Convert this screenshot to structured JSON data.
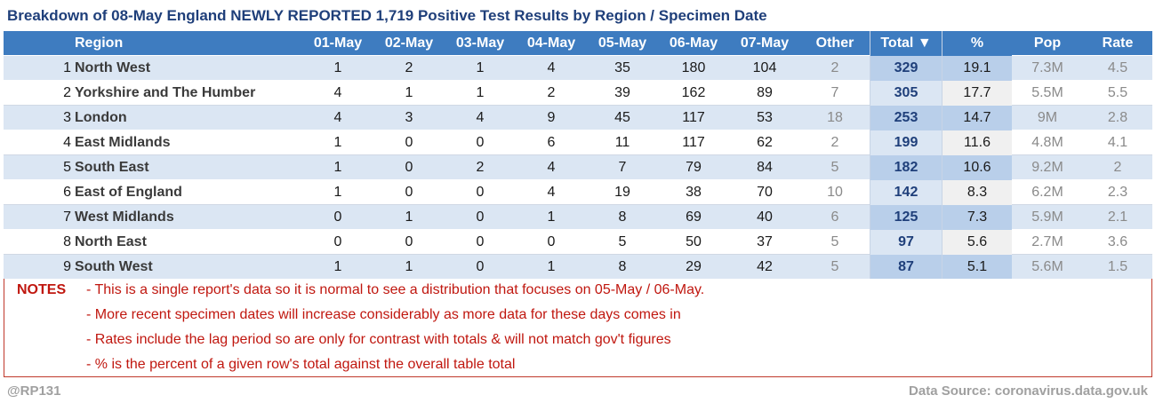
{
  "title": "Breakdown of 08-May England NEWLY REPORTED 1,719 Positive Test Results by Region / Specimen Date",
  "headers": {
    "region": "Region",
    "days": [
      "01-May",
      "02-May",
      "03-May",
      "04-May",
      "05-May",
      "06-May",
      "07-May"
    ],
    "other": "Other",
    "total": "Total ▼",
    "pct": "%",
    "pop": "Pop",
    "rate": "Rate"
  },
  "rows": [
    {
      "rank": "1",
      "region": "North West",
      "days": [
        "1",
        "2",
        "1",
        "4",
        "35",
        "180",
        "104"
      ],
      "other": "2",
      "total": "329",
      "pct": "19.1",
      "pop": "7.3M",
      "rate": "4.5"
    },
    {
      "rank": "2",
      "region": "Yorkshire and The Humber",
      "days": [
        "4",
        "1",
        "1",
        "2",
        "39",
        "162",
        "89"
      ],
      "other": "7",
      "total": "305",
      "pct": "17.7",
      "pop": "5.5M",
      "rate": "5.5"
    },
    {
      "rank": "3",
      "region": "London",
      "days": [
        "4",
        "3",
        "4",
        "9",
        "45",
        "117",
        "53"
      ],
      "other": "18",
      "total": "253",
      "pct": "14.7",
      "pop": "9M",
      "rate": "2.8"
    },
    {
      "rank": "4",
      "region": "East Midlands",
      "days": [
        "1",
        "0",
        "0",
        "6",
        "11",
        "117",
        "62"
      ],
      "other": "2",
      "total": "199",
      "pct": "11.6",
      "pop": "4.8M",
      "rate": "4.1"
    },
    {
      "rank": "5",
      "region": "South East",
      "days": [
        "1",
        "0",
        "2",
        "4",
        "7",
        "79",
        "84"
      ],
      "other": "5",
      "total": "182",
      "pct": "10.6",
      "pop": "9.2M",
      "rate": "2"
    },
    {
      "rank": "6",
      "region": "East of England",
      "days": [
        "1",
        "0",
        "0",
        "4",
        "19",
        "38",
        "70"
      ],
      "other": "10",
      "total": "142",
      "pct": "8.3",
      "pop": "6.2M",
      "rate": "2.3"
    },
    {
      "rank": "7",
      "region": "West Midlands",
      "days": [
        "0",
        "1",
        "0",
        "1",
        "8",
        "69",
        "40"
      ],
      "other": "6",
      "total": "125",
      "pct": "7.3",
      "pop": "5.9M",
      "rate": "2.1"
    },
    {
      "rank": "8",
      "region": "North East",
      "days": [
        "0",
        "0",
        "0",
        "0",
        "5",
        "50",
        "37"
      ],
      "other": "5",
      "total": "97",
      "pct": "5.6",
      "pop": "2.7M",
      "rate": "3.6"
    },
    {
      "rank": "9",
      "region": "South West",
      "days": [
        "1",
        "1",
        "0",
        "1",
        "8",
        "29",
        "42"
      ],
      "other": "5",
      "total": "87",
      "pct": "5.1",
      "pop": "5.6M",
      "rate": "1.5"
    }
  ],
  "notes": {
    "label": "NOTES",
    "lines": [
      "- This is a single report's data so it is normal to see a distribution that focuses on 05-May / 06-May.",
      "- More recent specimen dates will increase considerably as more data for these days comes in",
      "- Rates include the lag period so are only for contrast with totals & will not match gov't figures",
      "- % is the percent of a given row's total against the overall table total"
    ]
  },
  "footer": {
    "author": "@RP131",
    "source": "Data Source: coronavirus.data.gov.uk"
  }
}
